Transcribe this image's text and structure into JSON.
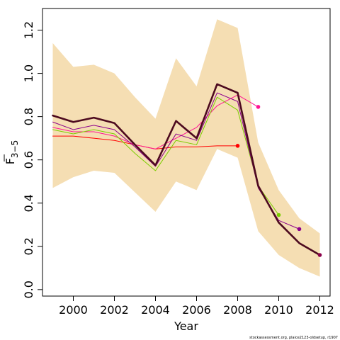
{
  "chart_data": {
    "type": "line",
    "xlabel": "Year",
    "ylabel_main": "F",
    "ylabel_sub": "3−5",
    "footer": "stockassessment.org, plaice2123-oldsetup, r1907",
    "xlim": [
      1998.5,
      2012.5
    ],
    "ylim": [
      -0.03,
      1.3
    ],
    "x_ticks": [
      2000,
      2002,
      2004,
      2006,
      2008,
      2010,
      2012
    ],
    "y_ticks": [
      0.0,
      0.2,
      0.4,
      0.6,
      0.8,
      1.0,
      1.2
    ],
    "y_tick_labels": [
      "0.0",
      "0.2",
      "0.4",
      "0.6",
      "0.8",
      "1.0",
      "1.2"
    ],
    "grid": false,
    "band": {
      "color": "#F5DEB3",
      "x": [
        1999,
        2000,
        2001,
        2002,
        2003,
        2004,
        2005,
        2006,
        2007,
        2008,
        2009,
        2010,
        2011,
        2012
      ],
      "upper": [
        1.14,
        1.03,
        1.04,
        1.0,
        0.89,
        0.79,
        1.07,
        0.94,
        1.25,
        1.21,
        0.68,
        0.46,
        0.33,
        0.26
      ],
      "lower": [
        0.47,
        0.52,
        0.55,
        0.54,
        0.45,
        0.36,
        0.5,
        0.46,
        0.65,
        0.61,
        0.27,
        0.16,
        0.1,
        0.06
      ]
    },
    "series": [
      {
        "color": "#FF0000",
        "width": 1,
        "x": [
          1999,
          2000,
          2001,
          2002,
          2003,
          2004,
          2005,
          2006,
          2007,
          2008
        ],
        "values": [
          0.71,
          0.71,
          0.7,
          0.69,
          0.67,
          0.65,
          0.66,
          0.66,
          0.665,
          0.665
        ]
      },
      {
        "color": "#FF1493",
        "width": 1,
        "x": [
          1999,
          2000,
          2001,
          2002,
          2003,
          2004,
          2005,
          2006,
          2007,
          2008,
          2009
        ],
        "values": [
          0.75,
          0.73,
          0.73,
          0.71,
          0.67,
          0.65,
          0.7,
          0.75,
          0.85,
          0.9,
          0.845
        ]
      },
      {
        "color": "#7CCD00",
        "width": 1,
        "x": [
          1999,
          2000,
          2001,
          2002,
          2003,
          2004,
          2005,
          2006,
          2007,
          2008,
          2009,
          2010
        ],
        "values": [
          0.74,
          0.72,
          0.74,
          0.72,
          0.63,
          0.55,
          0.69,
          0.67,
          0.89,
          0.83,
          0.48,
          0.345
        ]
      },
      {
        "color": "#8B008B",
        "width": 1,
        "x": [
          1999,
          2000,
          2001,
          2002,
          2003,
          2004,
          2005,
          2006,
          2007,
          2008,
          2009,
          2010,
          2011
        ],
        "values": [
          0.775,
          0.74,
          0.76,
          0.74,
          0.66,
          0.57,
          0.72,
          0.69,
          0.91,
          0.87,
          0.47,
          0.32,
          0.28
        ]
      },
      {
        "color": "#4D0A1F",
        "width": 2.6,
        "x": [
          1999,
          2000,
          2001,
          2002,
          2003,
          2004,
          2005,
          2006,
          2007,
          2008,
          2009,
          2010,
          2011,
          2012
        ],
        "values": [
          0.805,
          0.775,
          0.795,
          0.77,
          0.67,
          0.575,
          0.78,
          0.7,
          0.95,
          0.91,
          0.48,
          0.31,
          0.215,
          0.16
        ]
      }
    ],
    "endpoints": [
      {
        "x": 2008,
        "value": 0.665,
        "color": "#FF0000"
      },
      {
        "x": 2009,
        "value": 0.845,
        "color": "#FF1493"
      },
      {
        "x": 2010,
        "value": 0.345,
        "color": "#7CCD00"
      },
      {
        "x": 2011,
        "value": 0.28,
        "color": "#8B008B"
      },
      {
        "x": 2012,
        "value": 0.16,
        "color": "#8B004B"
      }
    ]
  }
}
